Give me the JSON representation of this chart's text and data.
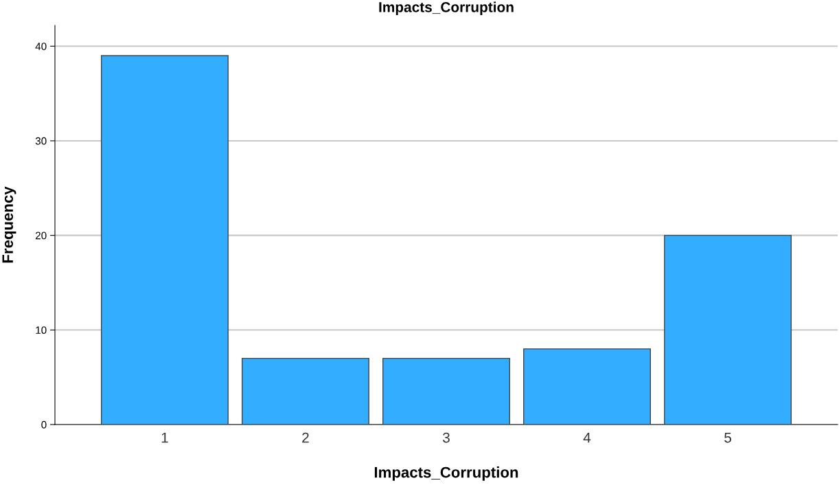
{
  "chart_data": {
    "type": "bar",
    "title": "Impacts_Corruption",
    "xlabel": "Impacts_Corruption",
    "ylabel": "Frequency",
    "categories": [
      "1",
      "2",
      "3",
      "4",
      "5"
    ],
    "values": [
      39,
      7,
      7,
      8,
      20
    ],
    "color": "#33adff",
    "ylim": [
      0,
      42.2
    ],
    "yticks": [
      0,
      10,
      20,
      30,
      40
    ],
    "grid": "y"
  }
}
